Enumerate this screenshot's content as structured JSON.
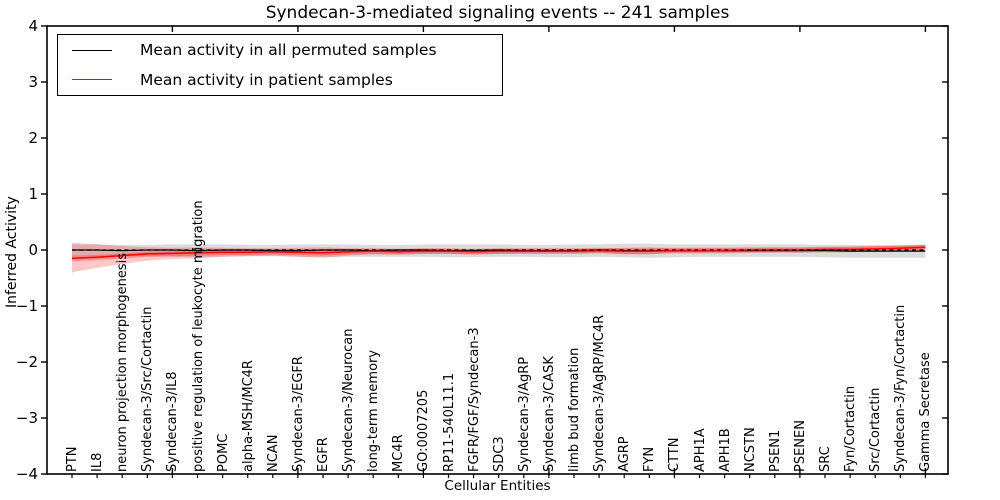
{
  "title": "Syndecan-3-mediated signaling events -- 241 samples",
  "legend": {
    "items": [
      {
        "label": "Mean activity in all permuted samples",
        "color": "#000000"
      },
      {
        "label": "Mean activity in patient samples",
        "color": "#ff0000"
      }
    ]
  },
  "chart_data": {
    "type": "line",
    "title": "Syndecan-3-mediated signaling events -- 241 samples",
    "xlabel": "Cellular Entities",
    "ylabel": "Inferred Activity",
    "ylim": [
      -4,
      4
    ],
    "yticks": [
      4,
      3,
      2,
      1,
      0,
      -1,
      -2,
      -3,
      -4
    ],
    "ytick_labels": [
      "4",
      "3",
      "2",
      "1",
      "0",
      "−1",
      "−2",
      "−3",
      "−4"
    ],
    "x_major_tick_every": 5,
    "grid": false,
    "legend_position": "upper left",
    "zero_line": {
      "style": "dashed",
      "color": "#000000",
      "y": 0
    },
    "categories": [
      "PTN",
      "IL8",
      "neuron projection morphogenesis",
      "Syndecan-3/Src/Cortactin",
      "Syndecan-3/IL8",
      "positive regulation of leukocyte migration",
      "POMC",
      "alpha-MSH/MC4R",
      "NCAN",
      "Syndecan-3/EGFR",
      "EGFR",
      "Syndecan-3/Neurocan",
      "long-term memory",
      "MC4R",
      "GO:0007205",
      "RP11-540L11.1",
      "FGFR/FGF/Syndecan-3",
      "SDC3",
      "Syndecan-3/AgRP",
      "Syndecan-3/CASK",
      "limb bud formation",
      "Syndecan-3/AgRP/MC4R",
      "AGRP",
      "FYN",
      "CTTN",
      "APH1A",
      "APH1B",
      "NCSTN",
      "PSEN1",
      "PSENEN",
      "SRC",
      "Fyn/Cortactin",
      "Src/Cortactin",
      "Syndecan-3/Fyn/Cortactin",
      "Gamma Secretase"
    ],
    "series": [
      {
        "name": "Mean activity in all permuted samples",
        "color": "#000000",
        "width": 1.3,
        "values": [
          0.0,
          0.0,
          -0.01,
          0.0,
          0.0,
          -0.01,
          0.0,
          0.0,
          -0.01,
          -0.01,
          0.0,
          0.0,
          -0.01,
          0.0,
          0.0,
          -0.01,
          -0.01,
          0.0,
          -0.01,
          -0.01,
          -0.01,
          0.0,
          -0.01,
          -0.01,
          -0.01,
          -0.01,
          -0.01,
          -0.01,
          -0.01,
          -0.01,
          -0.01,
          -0.02,
          -0.02,
          -0.02,
          -0.02
        ]
      },
      {
        "name": "Mean activity in patient samples",
        "color": "#ff0000",
        "width": 1.5,
        "values": [
          -0.15,
          -0.13,
          -0.1,
          -0.07,
          -0.06,
          -0.05,
          -0.04,
          -0.04,
          -0.03,
          -0.04,
          -0.05,
          -0.03,
          -0.02,
          -0.03,
          -0.02,
          -0.02,
          -0.03,
          -0.02,
          -0.02,
          -0.02,
          -0.02,
          -0.01,
          -0.02,
          -0.02,
          -0.01,
          -0.01,
          -0.01,
          0.0,
          0.0,
          0.0,
          0.01,
          0.01,
          0.02,
          0.03,
          0.05
        ]
      }
    ],
    "bands": [
      {
        "name": "permuted-samples-range",
        "color": "#bfbfbf",
        "opacity": 0.55,
        "upper": [
          0.1,
          0.1,
          0.09,
          0.09,
          0.1,
          0.1,
          0.1,
          0.09,
          0.09,
          0.1,
          0.1,
          0.1,
          0.09,
          0.09,
          0.1,
          0.1,
          0.1,
          0.1,
          0.09,
          0.09,
          0.1,
          0.1,
          0.11,
          0.11,
          0.1,
          0.1,
          0.1,
          0.1,
          0.1,
          0.1,
          0.09,
          0.09,
          0.09,
          0.08,
          0.08
        ],
        "lower": [
          -0.12,
          -0.12,
          -0.11,
          -0.11,
          -0.12,
          -0.13,
          -0.12,
          -0.11,
          -0.11,
          -0.12,
          -0.13,
          -0.12,
          -0.12,
          -0.12,
          -0.12,
          -0.13,
          -0.13,
          -0.12,
          -0.12,
          -0.13,
          -0.13,
          -0.12,
          -0.13,
          -0.14,
          -0.13,
          -0.12,
          -0.12,
          -0.12,
          -0.12,
          -0.12,
          -0.13,
          -0.14,
          -0.14,
          -0.14,
          -0.14
        ]
      },
      {
        "name": "patient-samples-range-outer",
        "color": "#ff0000",
        "opacity": 0.22,
        "upper": [
          0.13,
          0.1,
          0.07,
          0.05,
          0.04,
          0.05,
          0.04,
          0.03,
          0.03,
          0.04,
          0.05,
          0.03,
          0.02,
          0.02,
          0.02,
          0.02,
          0.02,
          0.02,
          0.02,
          0.02,
          0.02,
          0.02,
          0.04,
          0.05,
          0.03,
          0.03,
          0.03,
          0.03,
          0.04,
          0.04,
          0.05,
          0.06,
          0.07,
          0.08,
          0.09
        ],
        "lower": [
          -0.4,
          -0.32,
          -0.25,
          -0.19,
          -0.16,
          -0.15,
          -0.12,
          -0.11,
          -0.1,
          -0.12,
          -0.14,
          -0.1,
          -0.08,
          -0.08,
          -0.07,
          -0.07,
          -0.08,
          -0.07,
          -0.06,
          -0.06,
          -0.06,
          -0.05,
          -0.08,
          -0.08,
          -0.05,
          -0.05,
          -0.04,
          -0.04,
          -0.03,
          -0.03,
          -0.02,
          -0.02,
          -0.01,
          0.0,
          0.01
        ]
      },
      {
        "name": "patient-samples-range-inner",
        "color": "#ff0000",
        "opacity": 0.28,
        "upper": [
          -0.1,
          -0.09,
          -0.06,
          -0.03,
          -0.02,
          -0.01,
          0.01,
          0.01,
          0.02,
          0.01,
          0.0,
          0.02,
          0.03,
          0.02,
          0.03,
          0.03,
          0.02,
          0.03,
          0.03,
          0.03,
          0.03,
          0.04,
          0.03,
          0.03,
          0.04,
          0.04,
          0.04,
          0.05,
          0.05,
          0.05,
          0.06,
          0.06,
          0.07,
          0.08,
          0.1
        ],
        "lower": [
          -0.2,
          -0.18,
          -0.15,
          -0.12,
          -0.11,
          -0.1,
          -0.09,
          -0.09,
          -0.08,
          -0.09,
          -0.1,
          -0.08,
          -0.07,
          -0.08,
          -0.07,
          -0.07,
          -0.08,
          -0.07,
          -0.07,
          -0.07,
          -0.07,
          -0.06,
          -0.07,
          -0.07,
          -0.06,
          -0.06,
          -0.06,
          -0.05,
          -0.05,
          -0.05,
          -0.04,
          -0.04,
          -0.03,
          -0.02,
          0.0
        ]
      }
    ]
  }
}
